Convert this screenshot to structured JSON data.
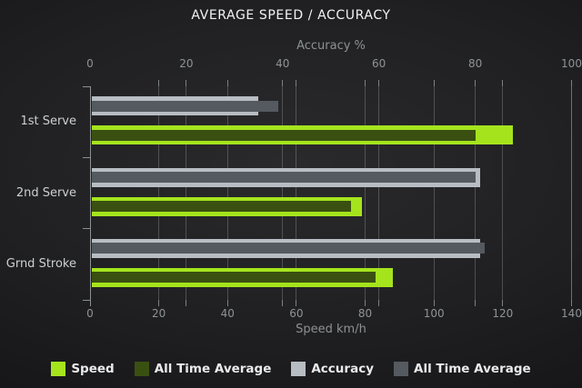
{
  "chart_data": {
    "type": "bar",
    "orientation": "horizontal",
    "title": "AVERAGE SPEED / ACCURACY",
    "categories": [
      "1st Serve",
      "2nd Serve",
      "Grnd Stroke"
    ],
    "axes": {
      "top": {
        "label": "Accuracy %",
        "min": 0,
        "max": 100,
        "ticks": [
          0,
          20,
          40,
          60,
          80,
          100
        ]
      },
      "bottom": {
        "label": "Speed km/h",
        "min": 0,
        "max": 140,
        "ticks": [
          0,
          20,
          40,
          60,
          80,
          100,
          120,
          140
        ]
      }
    },
    "grid": true,
    "legend_position": "bottom",
    "series": [
      {
        "name": "Speed",
        "axis": "bottom",
        "role": "main",
        "row": "lower",
        "color": "#a5e41d",
        "values": [
          123,
          79,
          88
        ]
      },
      {
        "name": "All Time Average",
        "axis": "bottom",
        "role": "overlay",
        "row": "lower",
        "color": "#3a5011",
        "values": [
          112,
          76,
          83
        ]
      },
      {
        "name": "Accuracy",
        "axis": "top",
        "role": "main",
        "row": "upper",
        "color": "#b7bdc2",
        "values": [
          35,
          81,
          81
        ]
      },
      {
        "name": "All Time Average",
        "axis": "top",
        "role": "overlay",
        "row": "upper",
        "color": "#545a60",
        "values": [
          39,
          80,
          82
        ]
      }
    ],
    "legend": [
      {
        "label": "Speed",
        "color": "#a5e41d"
      },
      {
        "label": "All Time Average",
        "color": "#3a5011"
      },
      {
        "label": "Accuracy",
        "color": "#b7bdc2"
      },
      {
        "label": "All Time Average",
        "color": "#545a60"
      }
    ],
    "colors": {
      "background": "#202022",
      "grid": "#84888c",
      "axis": "#8c9093",
      "tick_text": "#8f9396",
      "category_text": "#cdd0d2",
      "title_text": "#f2f3f4"
    }
  }
}
